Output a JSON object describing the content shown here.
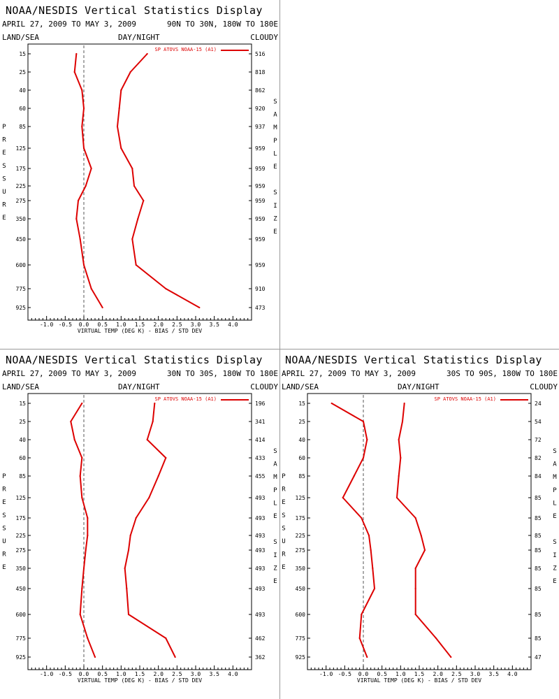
{
  "app": {
    "title": "NOAA/NESDIS Vertical Statistics Display",
    "date_range": "APRIL 27, 2009 TO MAY 3, 2009",
    "header_left": "LAND/SEA",
    "header_mid": "DAY/NIGHT",
    "header_right": "CLOUDY",
    "left_axis_label": "PRESSURE",
    "right_axis_label": "SAMPLE SIZE",
    "colors": {
      "series": "#dd0000",
      "frame": "#000000",
      "zero_line": "#555555",
      "divider": "#9a9a9a"
    }
  },
  "chart_data": [
    {
      "type": "line",
      "region": "90N TO 30N, 180W TO 180E",
      "xlabel": "VIRTUAL TEMP (DEG K) - BIAS / STD DEV",
      "ylabel": "PRESSURE",
      "xlim": [
        -1.5,
        4.5
      ],
      "xticks": [
        "-1.0",
        "-0.5",
        "0.0",
        "0.5",
        "1.0",
        "1.5",
        "2.0",
        "2.5",
        "3.0",
        "3.5",
        "4.0"
      ],
      "pressure_levels": [
        "15",
        "25",
        "40",
        "60",
        "85",
        "125",
        "175",
        "225",
        "275",
        "350",
        "450",
        "600",
        "775",
        "925"
      ],
      "sample_size": [
        "516",
        "818",
        "862",
        "920",
        "937",
        "959",
        "959",
        "959",
        "959",
        "959",
        "959",
        "959",
        "910",
        "473"
      ],
      "legend": "SP ATOVS NOAA-15 (A1)",
      "series": [
        {
          "name": "bias",
          "values": [
            -0.2,
            -0.25,
            -0.05,
            0.0,
            -0.05,
            0.0,
            0.2,
            0.05,
            -0.15,
            -0.2,
            -0.1,
            0.0,
            0.2,
            0.5
          ]
        },
        {
          "name": "std_dev",
          "values": [
            1.7,
            1.25,
            1.0,
            0.95,
            0.9,
            1.0,
            1.3,
            1.35,
            1.6,
            1.45,
            1.3,
            1.4,
            2.2,
            3.1
          ]
        }
      ]
    },
    {
      "type": "line",
      "region": "30N TO 30S, 180W TO 180E",
      "xlabel": "VIRTUAL TEMP (DEG K) - BIAS / STD DEV",
      "ylabel": "PRESSURE",
      "xlim": [
        -1.5,
        4.5
      ],
      "xticks": [
        "-1.0",
        "-0.5",
        "0.0",
        "0.5",
        "1.0",
        "1.5",
        "2.0",
        "2.5",
        "3.0",
        "3.5",
        "4.0"
      ],
      "pressure_levels": [
        "15",
        "25",
        "40",
        "60",
        "85",
        "125",
        "175",
        "225",
        "275",
        "350",
        "450",
        "600",
        "775",
        "925"
      ],
      "sample_size": [
        "196",
        "341",
        "414",
        "433",
        "455",
        "493",
        "493",
        "493",
        "493",
        "493",
        "493",
        "493",
        "462",
        "362"
      ],
      "legend": "SP ATOVS NOAA-15 (A1)",
      "series": [
        {
          "name": "bias",
          "values": [
            -0.05,
            -0.35,
            -0.25,
            -0.05,
            -0.1,
            -0.05,
            0.1,
            0.1,
            0.05,
            0.0,
            -0.05,
            -0.1,
            0.1,
            0.3
          ]
        },
        {
          "name": "std_dev",
          "values": [
            1.9,
            1.85,
            1.7,
            2.2,
            2.0,
            1.75,
            1.4,
            1.25,
            1.2,
            1.1,
            1.15,
            1.2,
            2.2,
            2.45
          ]
        }
      ]
    },
    {
      "type": "line",
      "region": "30S TO 90S, 180W TO 180E",
      "xlabel": "VIRTUAL TEMP (DEG K) - BIAS / STD DEV",
      "ylabel": "PRESSURE",
      "xlim": [
        -1.5,
        4.5
      ],
      "xticks": [
        "-1.0",
        "-0.5",
        "0.0",
        "0.5",
        "1.0",
        "1.5",
        "2.0",
        "2.5",
        "3.0",
        "3.5",
        "4.0"
      ],
      "pressure_levels": [
        "15",
        "25",
        "40",
        "60",
        "85",
        "125",
        "175",
        "225",
        "275",
        "350",
        "450",
        "600",
        "775",
        "925"
      ],
      "sample_size": [
        "24",
        "54",
        "72",
        "82",
        "84",
        "85",
        "85",
        "85",
        "85",
        "85",
        "85",
        "85",
        "85",
        "47"
      ],
      "legend": "SP ATOVS NOAA-15 (A1)",
      "series": [
        {
          "name": "bias",
          "values": [
            -0.85,
            0.0,
            0.1,
            0.0,
            -0.25,
            -0.55,
            -0.05,
            0.15,
            0.2,
            0.25,
            0.3,
            -0.05,
            -0.1,
            0.1
          ]
        },
        {
          "name": "std_dev",
          "values": [
            1.1,
            1.05,
            0.95,
            1.0,
            0.95,
            0.9,
            1.4,
            1.55,
            1.65,
            1.4,
            1.4,
            1.4,
            1.95,
            2.35
          ]
        }
      ]
    }
  ]
}
